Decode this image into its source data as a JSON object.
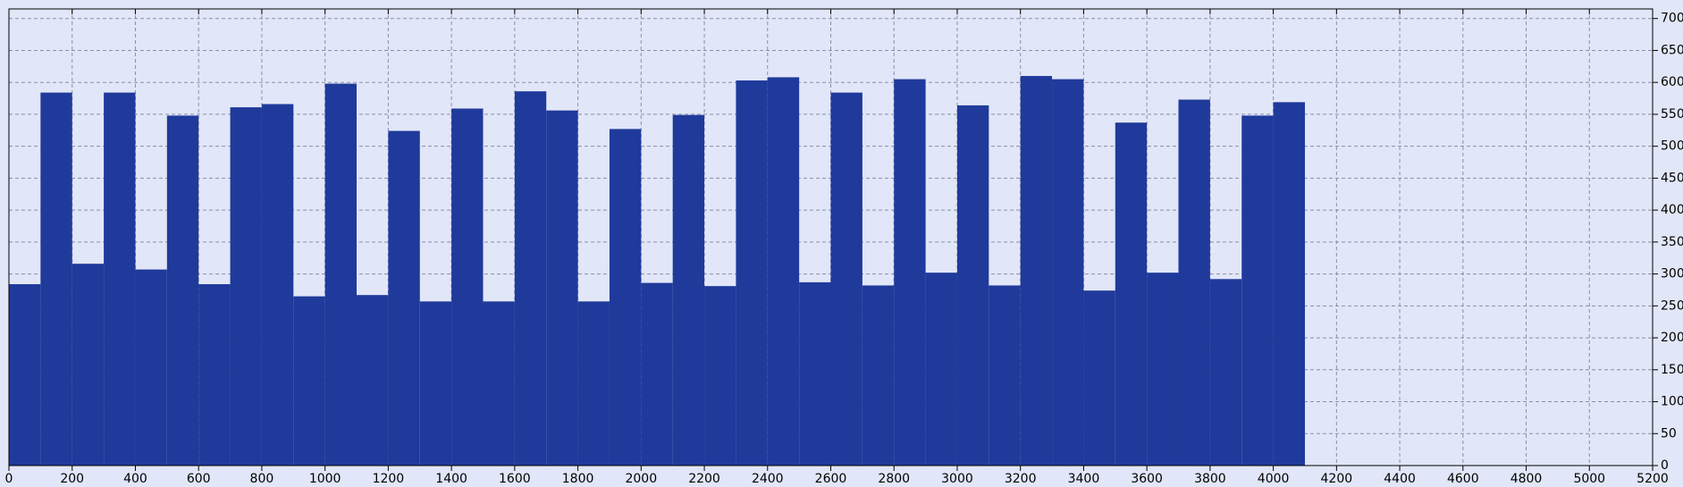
{
  "chart_data": {
    "type": "histogram",
    "bins": [
      0,
      100,
      200,
      300,
      400,
      500,
      600,
      700,
      800,
      900,
      1000,
      1100,
      1200,
      1300,
      1400,
      1500,
      1600,
      1700,
      1800,
      1900,
      2000,
      2100,
      2200,
      2300,
      2400,
      2500,
      2600,
      2700,
      2800,
      2900,
      3000,
      3100,
      3200,
      3300,
      3400,
      3500,
      3600,
      3700,
      3800,
      3900,
      4000,
      4100
    ],
    "values": [
      284,
      584,
      316,
      584,
      307,
      548,
      284,
      561,
      566,
      265,
      598,
      267,
      524,
      257,
      559,
      257,
      586,
      556,
      257,
      527,
      286,
      549,
      281,
      603,
      608,
      287,
      584,
      282,
      605,
      302,
      564,
      282,
      610,
      605,
      274,
      537,
      302,
      573,
      292,
      548,
      569
    ],
    "color": "#1f3a9b",
    "xlim": [
      0,
      5200
    ],
    "xticks": [
      0,
      200,
      400,
      600,
      800,
      1000,
      1200,
      1400,
      1600,
      1800,
      2000,
      2200,
      2400,
      2600,
      2800,
      3000,
      3200,
      3400,
      3600,
      3800,
      4000,
      4200,
      4400,
      4600,
      4800,
      5000,
      5200
    ],
    "ylim": [
      0,
      715
    ],
    "yticks": [
      0,
      50,
      100,
      150,
      200,
      250,
      300,
      350,
      400,
      450,
      500,
      550,
      600,
      650,
      700
    ],
    "grid": true
  }
}
